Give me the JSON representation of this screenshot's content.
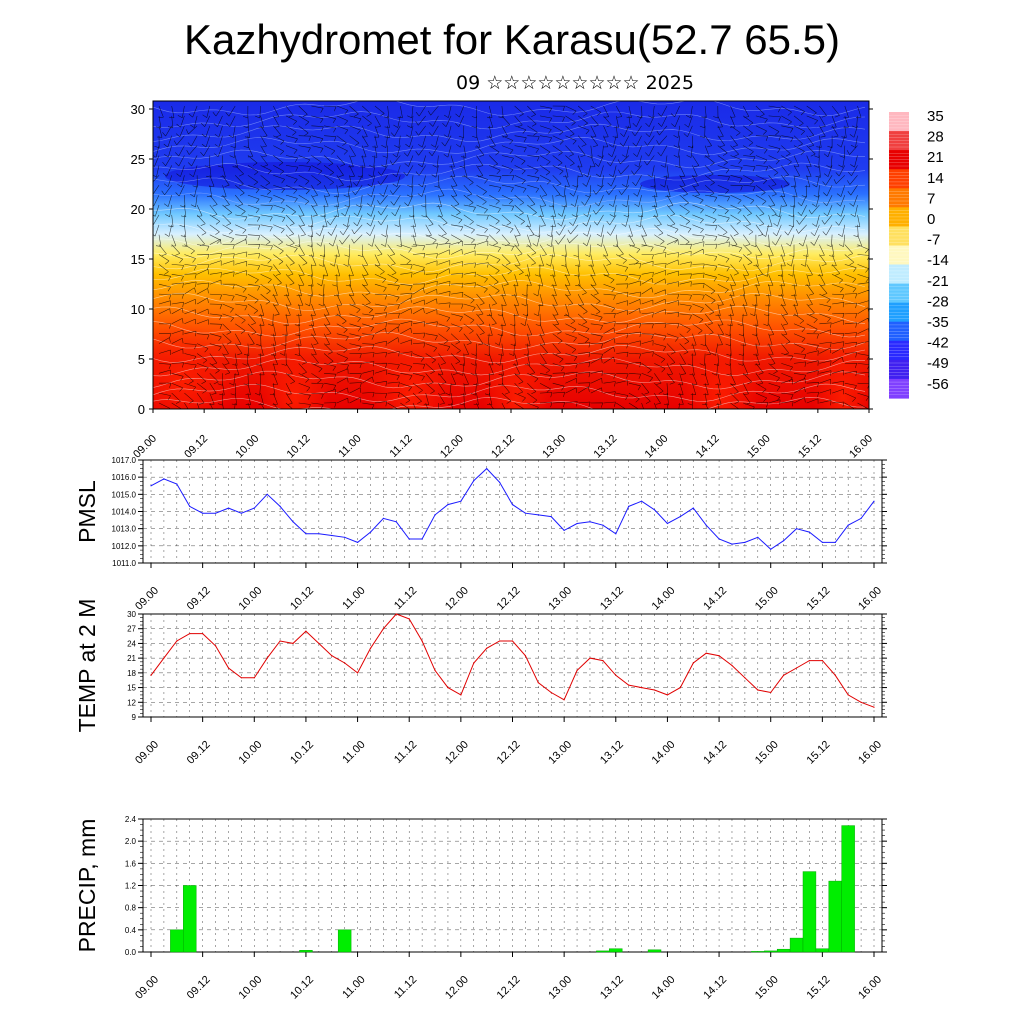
{
  "title": "Kazhydromet for Karasu(52.7 65.5)",
  "subtitle": "09 ☆☆☆☆☆☆☆☆☆ 2025",
  "colors": {
    "pmsl_line": "#1a1aff",
    "temp_line": "#e00000",
    "precip_bar": "#00ee00",
    "cross_section_scale": [
      "#ffb0b0",
      "#e80000",
      "#ff6a00",
      "#ffc000",
      "#fff8a0",
      "#a0e0ff",
      "#00a0ff",
      "#2040ff",
      "#8040ff"
    ]
  },
  "chart_data": [
    {
      "type": "heatmap",
      "name": "cross-section",
      "title": "",
      "x_ticklabels": [
        "09.00",
        "09.12",
        "10.00",
        "10.12",
        "11.00",
        "11.12",
        "12.00",
        "12.12",
        "13.00",
        "13.12",
        "14.00",
        "14.12",
        "15.00",
        "15.12",
        "16.00"
      ],
      "yticks": [
        0,
        5,
        10,
        15,
        20,
        25,
        30
      ],
      "ylim": [
        0,
        30.8
      ],
      "colorbar_labels": [
        "35",
        "28",
        "21",
        "14",
        "7",
        "0",
        "-7",
        "-14",
        "-21",
        "-28",
        "-35",
        "-42",
        "-49",
        "-56"
      ],
      "color_levels": [
        35,
        28,
        21,
        14,
        7,
        0,
        -7,
        -14,
        -21,
        -28,
        -35,
        -42,
        -49,
        -56
      ],
      "overlay": "wind barbs"
    },
    {
      "type": "line",
      "name": "pmsl",
      "ylabel": "PMSL",
      "yticks": [
        "1011.0",
        "1012.0",
        "1013.0",
        "1014.0",
        "1015.0",
        "1016.0",
        "1017.0"
      ],
      "ylim": [
        1011,
        1017
      ],
      "x_ticklabels": [
        "09.00",
        "09.12",
        "10.00",
        "10.12",
        "11.00",
        "11.12",
        "12.00",
        "12.12",
        "13.00",
        "13.12",
        "14.00",
        "14.12",
        "15.00",
        "15.12",
        "16.00"
      ],
      "x_hours": [
        0,
        3,
        6,
        9,
        12,
        15,
        18,
        21,
        24,
        27,
        30,
        33,
        36,
        39,
        42,
        45,
        48,
        51,
        54,
        57,
        60,
        63,
        66,
        69,
        72,
        75,
        78,
        81,
        84,
        87,
        90,
        93,
        96,
        99,
        102,
        105,
        108,
        111,
        114,
        117,
        120,
        123,
        126,
        129,
        132,
        135,
        138,
        141,
        144,
        147,
        150,
        153,
        156,
        159,
        162,
        165,
        168
      ],
      "values": [
        1015.5,
        1015.9,
        1015.6,
        1014.3,
        1013.9,
        1013.9,
        1014.2,
        1013.9,
        1014.2,
        1015.0,
        1014.3,
        1013.4,
        1012.7,
        1012.7,
        1012.6,
        1012.5,
        1012.2,
        1012.8,
        1013.6,
        1013.4,
        1012.4,
        1012.4,
        1013.8,
        1014.4,
        1014.6,
        1015.8,
        1016.5,
        1015.7,
        1014.4,
        1013.9,
        1013.8,
        1013.7,
        1012.9,
        1013.3,
        1013.4,
        1013.2,
        1012.7,
        1014.3,
        1014.6,
        1014.1,
        1013.3,
        1013.7,
        1014.2,
        1013.2,
        1012.4,
        1012.1,
        1012.2,
        1012.5,
        1011.8,
        1012.3,
        1013.0,
        1012.8,
        1012.2,
        1012.2,
        1013.2,
        1013.6,
        1014.6
      ]
    },
    {
      "type": "line",
      "name": "temperature",
      "ylabel": "TEMP at 2 M",
      "yticks": [
        "9",
        "12",
        "15",
        "18",
        "21",
        "24",
        "27",
        "30"
      ],
      "ylim": [
        9,
        30
      ],
      "x_ticklabels": [
        "09.00",
        "09.12",
        "10.00",
        "10.12",
        "11.00",
        "11.12",
        "12.00",
        "12.12",
        "13.00",
        "13.12",
        "14.00",
        "14.12",
        "15.00",
        "15.12",
        "16.00"
      ],
      "x_hours": [
        0,
        3,
        6,
        9,
        12,
        15,
        18,
        21,
        24,
        27,
        30,
        33,
        36,
        39,
        42,
        45,
        48,
        51,
        54,
        57,
        60,
        63,
        66,
        69,
        72,
        75,
        78,
        81,
        84,
        87,
        90,
        93,
        96,
        99,
        102,
        105,
        108,
        111,
        114,
        117,
        120,
        123,
        126,
        129,
        132,
        135,
        138,
        141,
        144,
        147,
        150,
        153,
        156,
        159,
        162,
        165,
        168
      ],
      "values": [
        17.5,
        21,
        24.5,
        26,
        26,
        23.5,
        19,
        17,
        17,
        21,
        24.5,
        24,
        26.5,
        24,
        21.5,
        20,
        18,
        23,
        27,
        30,
        29,
        24.5,
        18.5,
        15,
        13.5,
        20,
        23,
        24.5,
        24.5,
        21.5,
        16,
        14,
        12.5,
        18.5,
        21,
        20.5,
        17.5,
        15.5,
        15,
        14.5,
        13.5,
        15,
        20,
        22,
        21.5,
        19.5,
        17,
        14.5,
        14,
        17.5,
        19,
        20.5,
        20.5,
        17.5,
        13.5,
        12,
        11
      ]
    },
    {
      "type": "bar",
      "name": "precipitation",
      "ylabel": "PRECIP, mm",
      "yticks": [
        "0.0",
        "0.4",
        "0.8",
        "1.2",
        "1.6",
        "2.0",
        "2.4"
      ],
      "ylim": [
        0,
        2.4
      ],
      "x_ticklabels": [
        "09.00",
        "09.12",
        "10.00",
        "10.12",
        "11.00",
        "11.12",
        "12.00",
        "12.12",
        "13.00",
        "13.12",
        "14.00",
        "14.12",
        "15.00",
        "15.12",
        "16.00"
      ],
      "bars": [
        {
          "hour": 6,
          "value": 0.4
        },
        {
          "hour": 9,
          "value": 1.2
        },
        {
          "hour": 36,
          "value": 0.03
        },
        {
          "hour": 45,
          "value": 0.4
        },
        {
          "hour": 105,
          "value": 0.02
        },
        {
          "hour": 108,
          "value": 0.06
        },
        {
          "hour": 117,
          "value": 0.04
        },
        {
          "hour": 141,
          "value": 0.01
        },
        {
          "hour": 144,
          "value": 0.02
        },
        {
          "hour": 147,
          "value": 0.05
        },
        {
          "hour": 150,
          "value": 0.25
        },
        {
          "hour": 153,
          "value": 1.45
        },
        {
          "hour": 156,
          "value": 0.06
        },
        {
          "hour": 159,
          "value": 1.28
        },
        {
          "hour": 162,
          "value": 2.28
        }
      ]
    }
  ]
}
